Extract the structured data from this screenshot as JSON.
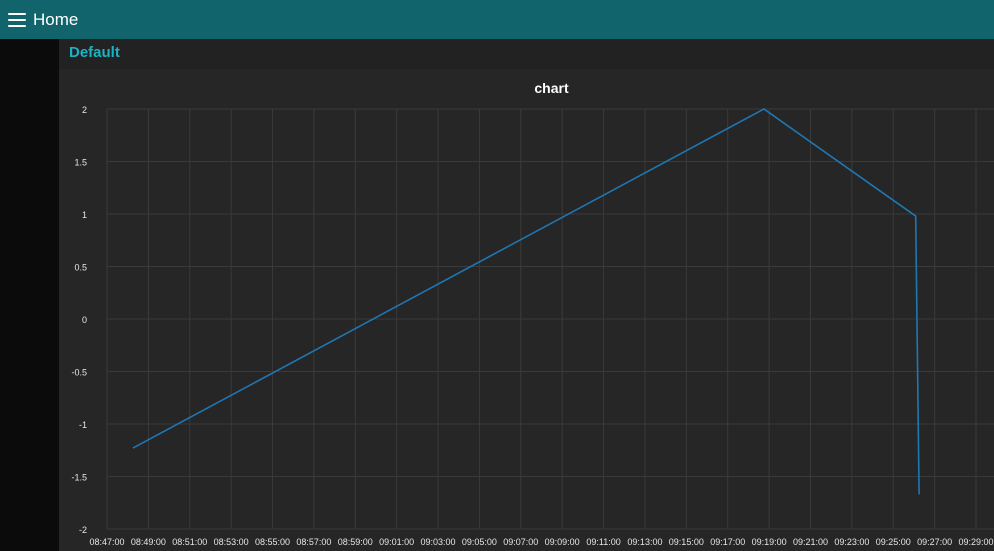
{
  "header": {
    "title": "Home",
    "menu_icon": "hamburger-menu-icon"
  },
  "group": {
    "title": "Default"
  },
  "colors": {
    "header": "#11646b",
    "accent": "#1bb3c4",
    "series": "#1f77b4",
    "background": "#222222"
  },
  "chart_data": {
    "type": "line",
    "title": "chart",
    "xlabel": "",
    "ylabel": "",
    "xlim": [
      "08:47:00",
      "09:29:00"
    ],
    "ylim": [
      -2,
      2
    ],
    "x_ticks": [
      "08:47:00",
      "08:49:00",
      "08:51:00",
      "08:53:00",
      "08:55:00",
      "08:57:00",
      "08:59:00",
      "09:01:00",
      "09:03:00",
      "09:05:00",
      "09:07:00",
      "09:09:00",
      "09:11:00",
      "09:13:00",
      "09:15:00",
      "09:17:00",
      "09:19:00",
      "09:21:00",
      "09:23:00",
      "09:25:00",
      "09:27:00",
      "09:29:00"
    ],
    "y_ticks": [
      "2",
      "1.5",
      "1",
      "0.5",
      "0",
      "-0.5",
      "-1",
      "-1.5",
      "-2"
    ],
    "grid": true,
    "series": [
      {
        "x": [
          "08:48:15",
          "09:18:45",
          "09:26:05",
          "09:26:15"
        ],
        "y": [
          -1.23,
          2.0,
          0.98,
          -1.67
        ]
      }
    ]
  }
}
